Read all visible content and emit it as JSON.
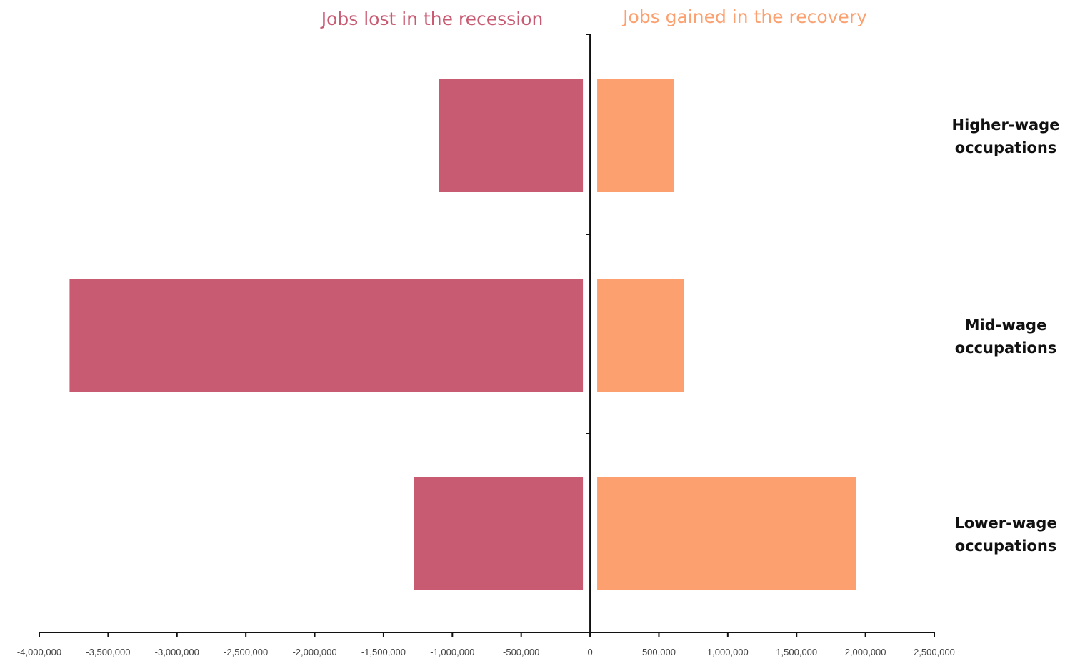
{
  "chart_data": {
    "type": "bar",
    "orientation": "horizontal",
    "categories": [
      [
        "Higher-wage",
        "occupations"
      ],
      [
        "Mid-wage",
        "occupations"
      ],
      [
        "Lower-wage",
        "occupations"
      ]
    ],
    "series": [
      {
        "name": "Jobs lost in the recession",
        "color": "#C85A72",
        "values": [
          -1100000,
          -3780000,
          -1280000
        ]
      },
      {
        "name": "Jobs gained in the recovery",
        "color": "#FCA070",
        "values": [
          610000,
          680000,
          1930000
        ]
      }
    ],
    "xlim": [
      -4000000,
      2500000
    ],
    "x_ticks": [
      -4000000,
      -3500000,
      -3000000,
      -2500000,
      -2000000,
      -1500000,
      -1000000,
      -500000,
      0,
      500000,
      1000000,
      1500000,
      2000000,
      2500000
    ],
    "x_tick_labels": [
      "-4,000,000",
      "-3,500,000",
      "-3,000,000",
      "-2,500,000",
      "-2,000,000",
      "-1,500,000",
      "-1,000,000",
      "-500,000",
      "0",
      "500,000",
      "1,000,000",
      "1,500,000",
      "2,000,000",
      "2,500,000"
    ],
    "title": "",
    "xlabel": "",
    "ylabel": "",
    "grid": false,
    "legend": "top"
  }
}
